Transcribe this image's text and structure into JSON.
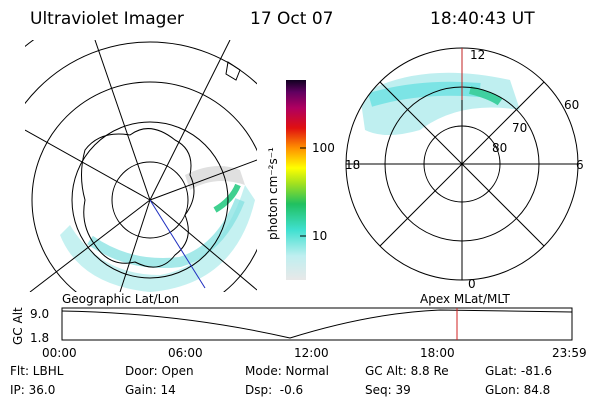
{
  "header": {
    "title": "Ultraviolet Imager",
    "date": "17 Oct 07",
    "time": "18:40:43 UT"
  },
  "colorbar": {
    "label": "photon cm⁻²s⁻¹",
    "ticks": [
      "100",
      "10"
    ]
  },
  "mlt_plot": {
    "labels": [
      "12",
      "18",
      "6",
      "0",
      "60",
      "70",
      "80"
    ]
  },
  "timeline": {
    "left_title": "Geographic Lat/Lon",
    "right_title": "Apex MLat/MLT",
    "y_label": "GC Alt",
    "y_ticks": [
      "9.0",
      "1.8"
    ],
    "x_ticks": [
      "00:00",
      "06:00",
      "12:00",
      "18:00",
      "23:59"
    ]
  },
  "footer": {
    "rows": [
      [
        "Flt: LBHL",
        "Door: Open",
        "Mode: Normal",
        "GC Alt: 8.8 Re",
        "GLat: -81.6"
      ],
      [
        "IP: 36.0",
        "Gain: 14",
        "Dsp:  -0.6",
        "Seq: 39",
        "GLon: 84.8"
      ]
    ]
  }
}
